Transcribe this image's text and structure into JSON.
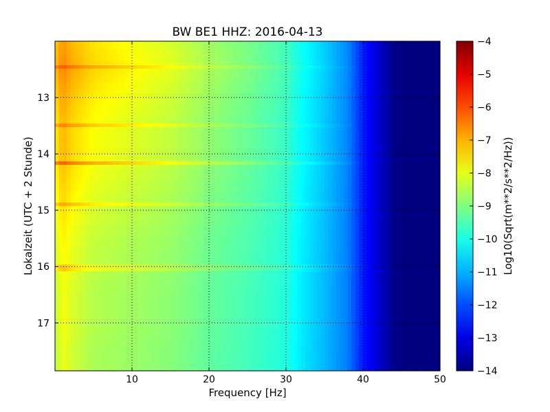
{
  "chart_data": {
    "type": "heatmap",
    "title": "BW BE1 HHZ: 2016-04-13",
    "xlabel": "Frequency [Hz]",
    "ylabel": "Lokalzeit (UTC + 2 Stunde)",
    "colorbar_label": "Log10(Sqrt(m**2/s**2/Hz))",
    "xlim": [
      0,
      50
    ],
    "ylim": [
      17.85,
      12.0
    ],
    "y_axis_inverted": true,
    "colormap": "jet",
    "color_range": [
      -14,
      -4
    ],
    "x_ticks": [
      10,
      20,
      30,
      40,
      50
    ],
    "x_tick_labels": [
      "10",
      "20",
      "30",
      "40",
      "50"
    ],
    "y_ticks": [
      13,
      14,
      15,
      16,
      17
    ],
    "y_tick_labels": [
      "13",
      "14",
      "15",
      "16",
      "17"
    ],
    "colorbar_ticks": [
      -4,
      -5,
      -6,
      -7,
      -8,
      -9,
      -10,
      -11,
      -12,
      -13,
      -14
    ],
    "colorbar_tick_labels": [
      "−4",
      "−5",
      "−6",
      "−7",
      "−8",
      "−9",
      "−10",
      "−11",
      "−12",
      "−13",
      "−14"
    ],
    "grid": "dotted",
    "frequency_profile": {
      "frequency_hz": [
        0,
        1,
        2,
        5,
        10,
        15,
        20,
        25,
        30,
        32,
        35,
        38,
        40,
        42,
        44,
        45,
        50
      ],
      "log10_amplitude": [
        -8.3,
        -7.7,
        -8.0,
        -8.4,
        -8.6,
        -8.8,
        -9.2,
        -9.5,
        -9.9,
        -10.4,
        -10.9,
        -11.5,
        -12.5,
        -13.2,
        -13.9,
        -14,
        -14
      ]
    },
    "time_profile": {
      "hour": [
        12.0,
        12.5,
        13.0,
        13.5,
        14.0,
        14.5,
        15.0,
        15.5,
        16.0,
        16.5,
        17.0,
        17.5,
        17.85
      ],
      "offset": [
        1.0,
        1.2,
        0.9,
        0.7,
        0.7,
        0.5,
        0.3,
        0.1,
        0.0,
        -0.1,
        -0.1,
        -0.2,
        -0.2
      ]
    },
    "strong_bands": [
      {
        "hour": 14.15,
        "offset": 1.0
      },
      {
        "hour": 13.5,
        "offset": 0.6
      },
      {
        "hour": 14.9,
        "offset": 0.6
      },
      {
        "hour": 16.03,
        "offset": 0.6
      },
      {
        "hour": 12.45,
        "offset": 0.5
      }
    ]
  }
}
